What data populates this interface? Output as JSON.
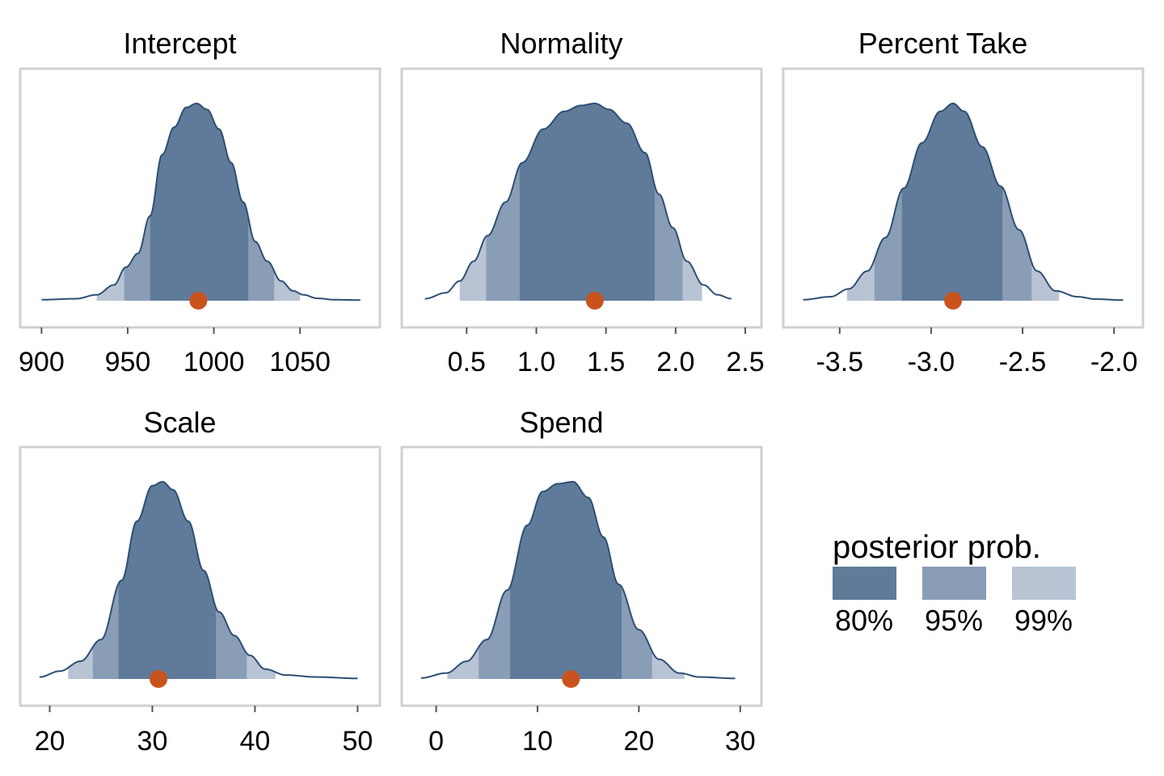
{
  "chart_data": {
    "type": "area",
    "description_kind": "posterior density plots with credible interval shading",
    "colors": {
      "band_80": "#5f7b99",
      "band_95": "#8a9db6",
      "band_99": "#b8c3d4",
      "outline": "#2e4f75",
      "point": "#c8531d",
      "frame": "#d0d0d0"
    },
    "legend": {
      "title": "posterior prob.",
      "placement": "bottom-right",
      "entries": [
        {
          "label": "80%",
          "band": "band_80"
        },
        {
          "label": "95%",
          "band": "band_95"
        },
        {
          "label": "99%",
          "band": "band_99"
        }
      ]
    },
    "panels": [
      {
        "title": "Intercept",
        "xlim": [
          897,
          1087
        ],
        "ticks": [
          900,
          950,
          1000,
          1050
        ],
        "tick_labels": [
          "900",
          "950",
          "1000",
          "1050"
        ],
        "x": [
          900,
          920,
          932,
          942,
          949,
          956,
          963,
          970,
          977,
          984,
          990,
          996,
          1003,
          1010,
          1017,
          1024,
          1031,
          1039,
          1046,
          1052,
          1060,
          1070,
          1085
        ],
        "density": [
          0.005,
          0.01,
          0.03,
          0.08,
          0.17,
          0.24,
          0.43,
          0.74,
          0.88,
          0.98,
          1.0,
          0.97,
          0.87,
          0.7,
          0.5,
          0.3,
          0.2,
          0.1,
          0.05,
          0.03,
          0.012,
          0.005,
          0.003
        ],
        "interval_80": [
          963,
          1020
        ],
        "interval_95": [
          948,
          1035
        ],
        "interval_99": [
          932,
          1050
        ],
        "point_estimate": 991
      },
      {
        "title": "Normality",
        "xlim": [
          0.15,
          2.5
        ],
        "ticks": [
          0.5,
          1.0,
          1.5,
          2.0,
          2.5
        ],
        "tick_labels": [
          "0.5",
          "1.0",
          "1.5",
          "2.0",
          "2.5"
        ],
        "x": [
          0.2,
          0.35,
          0.45,
          0.55,
          0.65,
          0.78,
          0.9,
          1.05,
          1.2,
          1.32,
          1.42,
          1.52,
          1.65,
          1.78,
          1.88,
          1.98,
          2.08,
          2.2,
          2.3,
          2.4
        ],
        "density": [
          0.01,
          0.04,
          0.1,
          0.2,
          0.33,
          0.5,
          0.7,
          0.87,
          0.96,
          0.99,
          1.0,
          0.97,
          0.9,
          0.75,
          0.54,
          0.37,
          0.2,
          0.08,
          0.03,
          0.01
        ],
        "interval_80": [
          0.88,
          1.85
        ],
        "interval_95": [
          0.64,
          2.05
        ],
        "interval_99": [
          0.45,
          2.19
        ],
        "point_estimate": 1.42
      },
      {
        "title": "Percent Take",
        "xlim": [
          -3.72,
          -1.93
        ],
        "ticks": [
          -3.5,
          -3.0,
          -2.5,
          -2.0
        ],
        "tick_labels": [
          "-3.5",
          "-3.0",
          "-2.5",
          "-2.0"
        ],
        "x": [
          -3.7,
          -3.55,
          -3.45,
          -3.35,
          -3.25,
          -3.15,
          -3.05,
          -2.95,
          -2.88,
          -2.82,
          -2.72,
          -2.62,
          -2.52,
          -2.42,
          -2.32,
          -2.2,
          -2.1,
          -1.95
        ],
        "density": [
          0.005,
          0.02,
          0.06,
          0.15,
          0.32,
          0.57,
          0.8,
          0.96,
          1.0,
          0.96,
          0.78,
          0.58,
          0.36,
          0.15,
          0.05,
          0.02,
          0.008,
          0.003
        ],
        "interval_80": [
          -3.16,
          -2.61
        ],
        "interval_95": [
          -3.31,
          -2.45
        ],
        "interval_99": [
          -3.46,
          -2.3
        ],
        "point_estimate": -2.88
      },
      {
        "title": "Scale",
        "xlim": [
          18.7,
          50.6
        ],
        "ticks": [
          20,
          30,
          40,
          50
        ],
        "tick_labels": [
          "20",
          "30",
          "40",
          "50"
        ],
        "x": [
          19,
          21,
          23,
          25,
          27,
          28.5,
          30,
          31,
          32,
          33.5,
          35,
          36.5,
          38,
          39.5,
          41,
          43,
          46,
          50
        ],
        "density": [
          0.01,
          0.04,
          0.09,
          0.2,
          0.5,
          0.8,
          0.98,
          1.0,
          0.96,
          0.8,
          0.55,
          0.34,
          0.22,
          0.12,
          0.05,
          0.02,
          0.01,
          0.003
        ],
        "interval_80": [
          26.7,
          36.2
        ],
        "interval_95": [
          24.2,
          39.2
        ],
        "interval_99": [
          21.8,
          42.0
        ],
        "point_estimate": 30.6
      },
      {
        "title": "Spend",
        "xlim": [
          -1.8,
          30.5
        ],
        "ticks": [
          0,
          10,
          20,
          30
        ],
        "tick_labels": [
          "0",
          "10",
          "20",
          "30"
        ],
        "x": [
          -1.5,
          1,
          3,
          5,
          7,
          9,
          10.5,
          12,
          13.5,
          15,
          16.5,
          18,
          20,
          22,
          24,
          26,
          29.5
        ],
        "density": [
          0.005,
          0.03,
          0.09,
          0.2,
          0.45,
          0.78,
          0.95,
          0.99,
          1.0,
          0.92,
          0.72,
          0.48,
          0.25,
          0.1,
          0.03,
          0.01,
          0.003
        ],
        "interval_80": [
          7.3,
          18.3
        ],
        "interval_95": [
          4.2,
          21.3
        ],
        "interval_99": [
          1.1,
          24.5
        ],
        "point_estimate": 13.3
      }
    ]
  }
}
